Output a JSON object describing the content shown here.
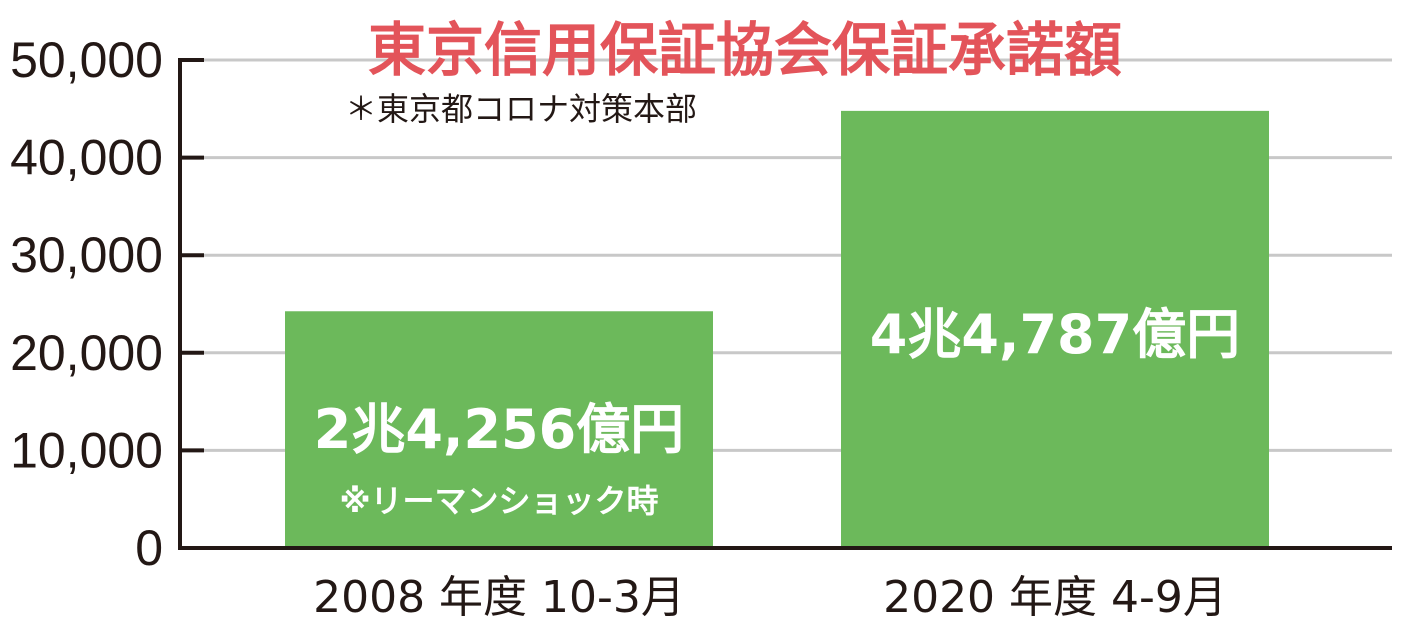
{
  "chart_data": {
    "type": "bar",
    "title": "東京信用保証協会保証承諾額",
    "subtitle": "＊東京都コロナ対策本部",
    "xlabel": "",
    "ylabel": "",
    "ylim": [
      0,
      50000
    ],
    "yticks": [
      0,
      10000,
      20000,
      30000,
      40000,
      50000
    ],
    "ytick_labels": [
      "0",
      "10,000",
      "20,000",
      "30,000",
      "40,000",
      "50,000"
    ],
    "grid": true,
    "categories": [
      "2008 年度 10-3月",
      "2020 年度 4-9月"
    ],
    "values": [
      24256,
      44787
    ],
    "bar_labels": [
      "2兆4,256億円",
      "4兆4,787億円"
    ],
    "bar_notes": [
      "※リーマンショック時",
      ""
    ],
    "colors": {
      "bar": "#6cb95b",
      "title": "#e3545a",
      "grid": "#c8c8c8",
      "axis": "#231815",
      "text": "#231815",
      "bar_text": "#ffffff"
    }
  }
}
